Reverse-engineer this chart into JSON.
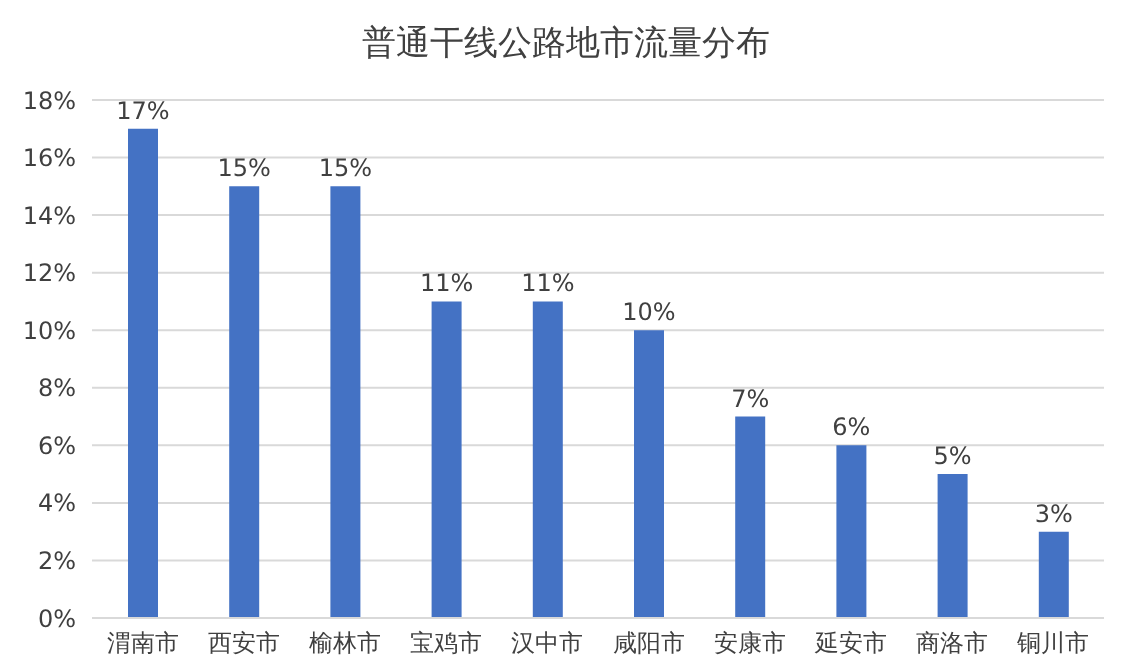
{
  "chart_data": {
    "type": "bar",
    "title": "普通干线公路地市流量分布",
    "categories": [
      "渭南市",
      "西安市",
      "榆林市",
      "宝鸡市",
      "汉中市",
      "咸阳市",
      "安康市",
      "延安市",
      "商洛市",
      "铜川市"
    ],
    "values": [
      17,
      15,
      15,
      11,
      11,
      10,
      7,
      6,
      5,
      3
    ],
    "value_labels": [
      "17%",
      "15%",
      "15%",
      "11%",
      "11%",
      "10%",
      "7%",
      "6%",
      "5%",
      "3%"
    ],
    "color": "#4472c4",
    "ylim": [
      0,
      18
    ],
    "yticks": [
      {
        "value": 0,
        "label": "0%"
      },
      {
        "value": 2,
        "label": "2%"
      },
      {
        "value": 4,
        "label": "4%"
      },
      {
        "value": 6,
        "label": "6%"
      },
      {
        "value": 8,
        "label": "8%"
      },
      {
        "value": 10,
        "label": "10%"
      },
      {
        "value": 12,
        "label": "12%"
      },
      {
        "value": 14,
        "label": "14%"
      },
      {
        "value": 16,
        "label": "16%"
      },
      {
        "value": 18,
        "label": "18%"
      }
    ],
    "grid": "y",
    "legend": false
  }
}
